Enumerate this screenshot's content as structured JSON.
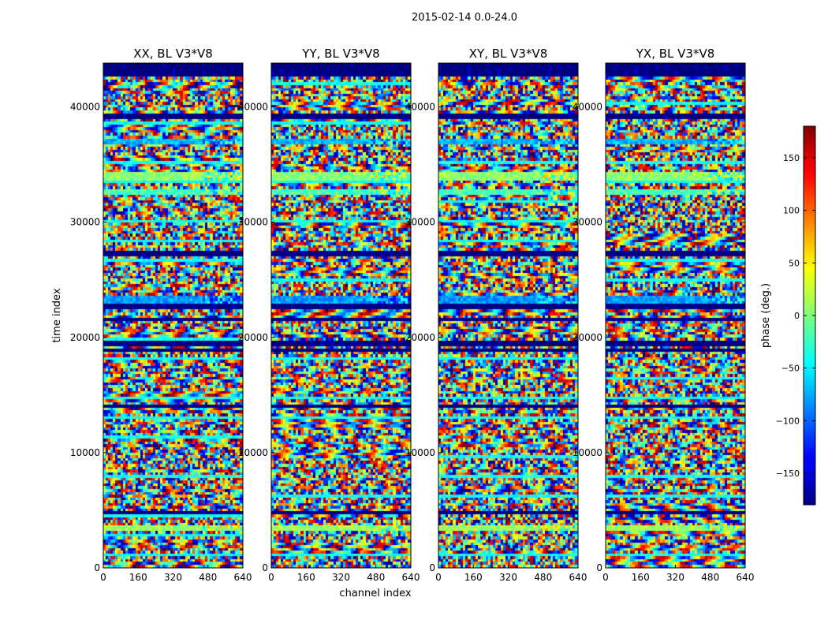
{
  "figure": {
    "suptitle": "2015-02-14 0.0-24.0"
  },
  "chart_data": {
    "type": "heatmap",
    "xlabel": "channel index",
    "ylabel": "time index",
    "xlim": [
      0,
      640
    ],
    "ylim": [
      0,
      43800
    ],
    "x_ticks": [
      0,
      160,
      320,
      480,
      640
    ],
    "y_ticks": [
      0,
      10000,
      20000,
      30000,
      40000
    ],
    "colormap": "jet",
    "panels": [
      {
        "title": "XX, BL V3*V8",
        "pol": "XX"
      },
      {
        "title": "YY, BL V3*V8",
        "pol": "YY"
      },
      {
        "title": "XY, BL V3*V8",
        "pol": "XY"
      },
      {
        "title": "YX, BL V3*V8",
        "pol": "YX"
      }
    ],
    "colorbar": {
      "label": "phase (deg.)",
      "range": [
        -180,
        180
      ],
      "ticks": [
        -150,
        -100,
        -50,
        0,
        50,
        100,
        150
      ]
    },
    "flagged_bands": [
      [
        42600,
        43800
      ],
      [
        39000,
        39400
      ],
      [
        27000,
        27400
      ],
      [
        22500,
        22900
      ],
      [
        21400,
        21700
      ],
      [
        19300,
        19700
      ],
      [
        18700,
        18900
      ],
      [
        13900,
        14100
      ],
      [
        9400,
        9600
      ],
      [
        4700,
        4950
      ]
    ],
    "uniform_bands": [
      [
        36700,
        37300,
        -70
      ],
      [
        33600,
        34300,
        5
      ],
      [
        32400,
        32900,
        -20
      ],
      [
        22900,
        23600,
        -80
      ],
      [
        3200,
        3700,
        10
      ]
    ]
  }
}
